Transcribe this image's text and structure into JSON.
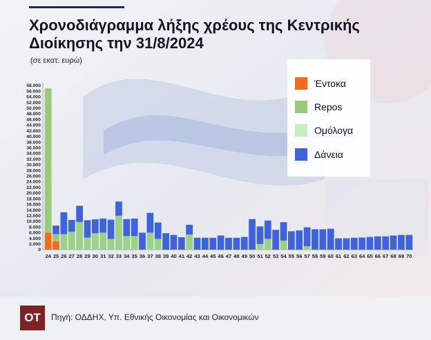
{
  "header": {
    "title": "Χρονοδιάγραμμα λήξης χρέους της Κεντρικής Διοίκησης την 31/8/2024",
    "subtitle": "(σε εκατ. ευρώ)"
  },
  "footer": {
    "logo_text": "OT",
    "source": "Πηγή: ΟΔΔΗΧ, Υπ. Εθνικής Οικονομίας και Οικονομικών"
  },
  "legend": [
    {
      "label": "Έντοκα",
      "color": "#f26a1b"
    },
    {
      "label": "Repos",
      "color": "#9bc97c"
    },
    {
      "label": "Ομόλογα",
      "color": "#c5efc3"
    },
    {
      "label": "Δάνεια",
      "color": "#3f63d8"
    }
  ],
  "chart_data": {
    "type": "bar",
    "stacked": true,
    "title": "Χρονοδιάγραμμα λήξης χρέους της Κεντρικής Διοίκησης την 31/8/2024",
    "subtitle": "(σε εκατ. ευρώ)",
    "ylim": [
      0,
      58000
    ],
    "ytick_step": 2000,
    "grid": false,
    "legend_position": "top-right",
    "categories": [
      "24",
      "25",
      "26",
      "27",
      "28",
      "29",
      "30",
      "31",
      "32",
      "33",
      "34",
      "35",
      "36",
      "37",
      "38",
      "39",
      "40",
      "41",
      "42",
      "43",
      "44",
      "45",
      "46",
      "47",
      "48",
      "49",
      "50",
      "51",
      "52",
      "53",
      "54",
      "55",
      "56",
      "57",
      "58",
      "59",
      "60",
      "61",
      "62",
      "63",
      "64",
      "65",
      "66",
      "67",
      "68",
      "69",
      "70"
    ],
    "series": [
      {
        "name": "Έντοκα",
        "color": "#f26a1b",
        "values": [
          6000,
          3000,
          0,
          0,
          0,
          0,
          0,
          0,
          0,
          0,
          0,
          0,
          0,
          0,
          0,
          0,
          0,
          0,
          0,
          0,
          0,
          0,
          0,
          0,
          0,
          0,
          0,
          0,
          0,
          0,
          0,
          0,
          0,
          0,
          0,
          0,
          0,
          0,
          0,
          0,
          0,
          0,
          0,
          0,
          0,
          0,
          0
        ]
      },
      {
        "name": "Repos",
        "color": "#9bc97c",
        "values": [
          51000,
          2500,
          0,
          0,
          0,
          0,
          0,
          0,
          0,
          0,
          0,
          0,
          0,
          0,
          0,
          0,
          0,
          0,
          0,
          0,
          0,
          0,
          0,
          0,
          0,
          0,
          0,
          0,
          0,
          0,
          0,
          0,
          0,
          0,
          0,
          0,
          0,
          0,
          0,
          0,
          0,
          0,
          0,
          0,
          0,
          0,
          0
        ]
      },
      {
        "name": "Ομόλογα",
        "color": "#9bd28a",
        "values": [
          0,
          0,
          5500,
          6300,
          9800,
          4300,
          5800,
          6000,
          3800,
          12000,
          4800,
          4800,
          0,
          6000,
          3800,
          0,
          0,
          0,
          5300,
          0,
          0,
          0,
          0,
          0,
          0,
          0,
          0,
          2000,
          3800,
          0,
          3200,
          0,
          0,
          1200,
          0,
          0,
          0,
          0,
          0,
          0,
          0,
          0,
          0,
          0,
          0,
          0,
          0
        ]
      },
      {
        "name": "Δάνεια",
        "color": "#3f63d8",
        "values": [
          0,
          3000,
          7700,
          4200,
          5700,
          6100,
          4900,
          5000,
          6800,
          5000,
          6000,
          6200,
          6000,
          7000,
          5800,
          5800,
          5200,
          4400,
          3500,
          4200,
          4200,
          4200,
          5000,
          4200,
          4200,
          4500,
          10800,
          6200,
          6500,
          7000,
          6500,
          6500,
          6800,
          6700,
          7200,
          7200,
          7400,
          4000,
          4000,
          4200,
          4300,
          4500,
          4700,
          4700,
          5000,
          5200,
          5200
        ]
      }
    ]
  }
}
